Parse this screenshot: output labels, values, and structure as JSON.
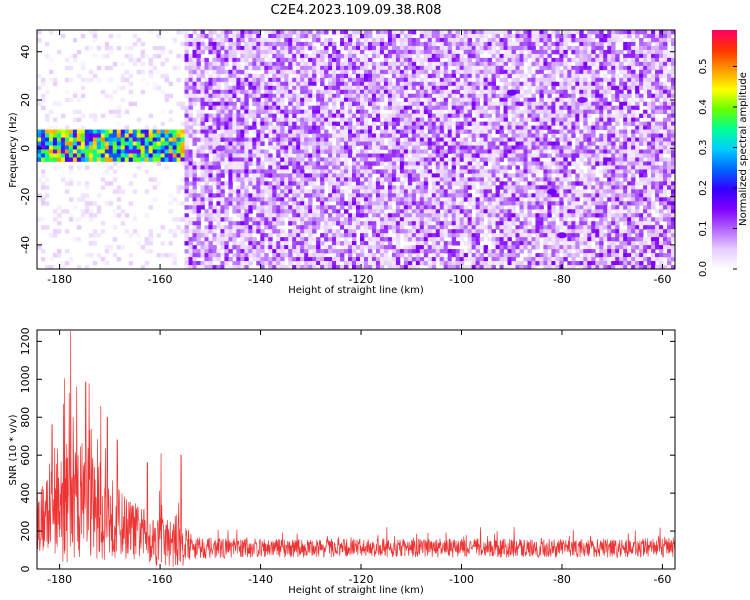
{
  "figure": {
    "title": "C2E4.2023.109.09.38.R08"
  },
  "chart_data": [
    {
      "type": "heatmap",
      "title": "C2E4.2023.109.09.38.R08",
      "xlabel": "Height of straight line (km)",
      "ylabel": "Frequency (Hz)",
      "xlim": [
        -184.5,
        -57.5
      ],
      "ylim": [
        -50,
        49
      ],
      "xticks": [
        -180,
        -160,
        -140,
        -120,
        -100,
        -80,
        -60
      ],
      "yticks": [
        -40,
        -20,
        0,
        20,
        40
      ],
      "colorbar": {
        "label": "Normalized spectral amplitude",
        "range": [
          0.0,
          0.59
        ],
        "ticks": [
          0.0,
          0.1,
          0.2,
          0.3,
          0.4,
          0.5
        ],
        "colors": [
          "#ffffff",
          "#e6ccff",
          "#b366ff",
          "#7f00ff",
          "#3300ff",
          "#0066ff",
          "#00ccff",
          "#00ff99",
          "#66ff00",
          "#ffff00",
          "#ff9900",
          "#ff3300",
          "#ff0066"
        ]
      },
      "description_regions": [
        {
          "x_range": [
            -184.5,
            -155
          ],
          "freq_range": [
            -5,
            8
          ],
          "amplitude_range": [
            0.15,
            0.5
          ],
          "feature": "strong narrow band near 0 Hz"
        },
        {
          "x_range": [
            -184.5,
            -155
          ],
          "freq_range": [
            -50,
            49
          ],
          "amplitude_range": [
            0.0,
            0.05
          ],
          "feature": "sparse weak background"
        },
        {
          "x_range": [
            -155,
            -57.5
          ],
          "freq_range": [
            -50,
            49
          ],
          "amplitude_range": [
            0.02,
            0.15
          ],
          "feature": "broadband noise"
        }
      ],
      "hotspots": [
        {
          "x": -90,
          "y": 23,
          "value": 0.16
        },
        {
          "x": -76,
          "y": 20,
          "value": 0.14
        },
        {
          "x": -80,
          "y": -36,
          "value": 0.15
        },
        {
          "x": -82,
          "y": -18,
          "value": 0.16
        },
        {
          "x": -148,
          "y": 0,
          "value": 0.12
        }
      ]
    },
    {
      "type": "line",
      "xlabel": "Height of straight line (km)",
      "ylabel": "SNR (10 * v/v)",
      "xlim": [
        -184.5,
        -57.5
      ],
      "ylim": [
        0,
        1260
      ],
      "xticks": [
        -180,
        -160,
        -140,
        -120,
        -100,
        -80,
        -60
      ],
      "yticks": [
        0,
        200,
        400,
        600,
        800,
        1000,
        1200
      ],
      "series": [
        {
          "name": "SNR",
          "color": "#ee3333",
          "envelope_x": [
            -184.5,
            -180,
            -178,
            -176,
            -174,
            -172,
            -170,
            -168,
            -166,
            -164,
            -162,
            -160,
            -158,
            -156,
            -155,
            -154,
            -150,
            -140,
            -120,
            -100,
            -80,
            -60,
            -57.5
          ],
          "envelope_base": [
            250,
            320,
            350,
            360,
            320,
            300,
            280,
            240,
            210,
            190,
            160,
            150,
            140,
            150,
            140,
            120,
            110,
            110,
            110,
            110,
            110,
            110,
            110
          ],
          "envelope_spread": [
            180,
            300,
            380,
            350,
            360,
            300,
            250,
            200,
            180,
            160,
            150,
            160,
            140,
            170,
            120,
            80,
            60,
            55,
            55,
            55,
            55,
            55,
            55
          ],
          "peaks": [
            {
              "x": -177.8,
              "y": 1255
            },
            {
              "x": -179.0,
              "y": 1005
            },
            {
              "x": -174.8,
              "y": 985
            },
            {
              "x": -176.6,
              "y": 960
            },
            {
              "x": -171.8,
              "y": 860
            },
            {
              "x": -170.5,
              "y": 800
            },
            {
              "x": -181.5,
              "y": 760
            },
            {
              "x": -168.5,
              "y": 680
            },
            {
              "x": -159.8,
              "y": 610
            },
            {
              "x": -155.8,
              "y": 600
            },
            {
              "x": -162.5,
              "y": 560
            }
          ]
        }
      ]
    }
  ]
}
